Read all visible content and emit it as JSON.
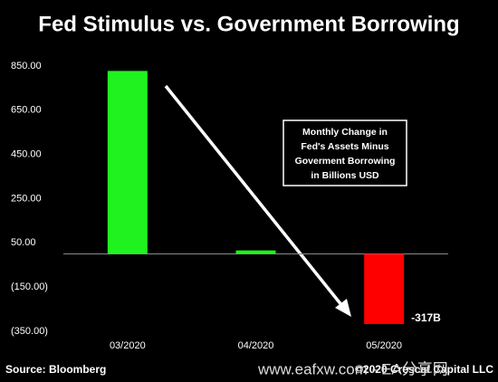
{
  "chart_data": {
    "type": "bar",
    "title": "Fed Stimulus vs. Government Borrowing",
    "categories": [
      "03/2020",
      "04/2020",
      "05/2020"
    ],
    "values": [
      828,
      16,
      -317
    ],
    "value_labels": [
      null,
      null,
      "-317B"
    ],
    "colors": [
      "#1ff21f",
      "#1ff21f",
      "#ff0000"
    ],
    "ylim": [
      -350,
      850
    ],
    "yticks": [
      {
        "value": -350,
        "label": "(350.00)"
      },
      {
        "value": -150,
        "label": "(150.00)"
      },
      {
        "value": 50,
        "label": "50.00"
      },
      {
        "value": 250,
        "label": "250.00"
      },
      {
        "value": 450,
        "label": "450.00"
      },
      {
        "value": 650,
        "label": "650.00"
      },
      {
        "value": 850,
        "label": "850.00"
      }
    ],
    "annotation": [
      "Monthly Change in",
      "Fed's Assets Minus",
      "Goverment Borrowing",
      "in Billions USD"
    ],
    "source": "Source: Bloomberg",
    "copyright": "©2020 Crescat Capital LLC",
    "watermark": "www.eafxw.com - EA分享网"
  }
}
